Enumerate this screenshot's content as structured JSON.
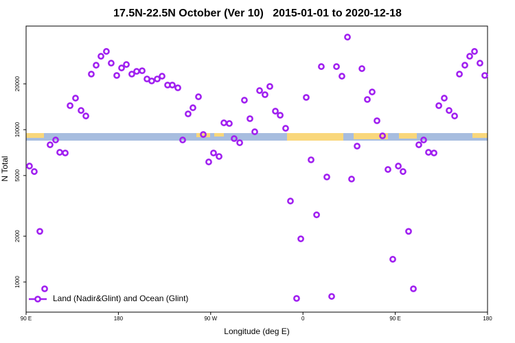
{
  "chart_data": {
    "type": "scatter",
    "title": "17.5N-22.5N October (Ver 10)   2015-01-01 to 2020-12-18",
    "x_label": "Longitude (deg E)",
    "y_label": "N Total",
    "ylog": true,
    "legend_position": "bottomleft",
    "xlim": [
      90,
      540
    ],
    "ylim": [
      634,
      47900
    ],
    "xticks": [
      {
        "value": 90,
        "label": "90 E"
      },
      180,
      {
        "value": 270,
        "label": "90 W"
      },
      {
        "value": 360,
        "label": "0"
      },
      {
        "value": 450,
        "label": "90 E"
      },
      {
        "value": 540,
        "label": "180"
      }
    ],
    "yticks": [
      1000,
      2000,
      5000,
      10000,
      20000
    ],
    "series": [
      {
        "name": "Land (Nadir&Glint) and Ocean (Glint)",
        "color": "#a020f0",
        "x": [
          93.3,
          98.0,
          103.4,
          108.1,
          113.4,
          118.8,
          122.8,
          128.2,
          132.9,
          138.2,
          143.6,
          148.3,
          153.6,
          158.3,
          163.0,
          168.3,
          173.0,
          178.4,
          183.1,
          187.8,
          193.1,
          197.8,
          203.2,
          207.9,
          212.5,
          217.9,
          222.6,
          228.0,
          232.6,
          238.0,
          242.7,
          248.0,
          252.7,
          258.1,
          262.8,
          268.1,
          272.8,
          278.2,
          282.9,
          288.2,
          292.9,
          298.3,
          302.9,
          308.3,
          313.0,
          317.7,
          323.0,
          327.7,
          333.1,
          337.8,
          343.1,
          347.8,
          353.8,
          357.9,
          363.2,
          367.9,
          373.3,
          377.9,
          383.3,
          388.0,
          392.7,
          398.0,
          403.4,
          407.4,
          412.8,
          417.5,
          422.8,
          427.5,
          432.2,
          437.6,
          442.9,
          447.6,
          453.0,
          457.6,
          463.0,
          467.7,
          473.0,
          477.7,
          482.4,
          487.8,
          492.5,
          497.8,
          502.5,
          507.9,
          512.6,
          517.9,
          522.6,
          527.3,
          532.6,
          537.3
        ],
        "values": [
          5770,
          5310,
          2150,
          902,
          7960,
          8560,
          7100,
          7030,
          14380,
          16110,
          13370,
          12300,
          23170,
          26500,
          30340,
          32650,
          27350,
          22700,
          25430,
          26790,
          23170,
          24150,
          24380,
          21530,
          20890,
          21530,
          22450,
          19630,
          19630,
          18830,
          8560,
          12700,
          13930,
          16450,
          9300,
          6140,
          7030,
          6670,
          11090,
          10980,
          8740,
          8210,
          15620,
          11810,
          9690,
          18060,
          16980,
          19230,
          13230,
          12440,
          10210,
          3400,
          780,
          1920,
          16290,
          6340,
          2760,
          25960,
          4890,
          804,
          25960,
          22450,
          40550,
          4740,
          7800,
          25170,
          15790,
          17690,
          11450,
          9110,
          5480,
          1410,
          5770,
          5310,
          2150,
          902,
          7960,
          8560,
          7100,
          7030,
          14380,
          16110,
          13370,
          12300,
          23170,
          26500,
          30340,
          32650,
          27350,
          22700
        ]
      }
    ]
  }
}
